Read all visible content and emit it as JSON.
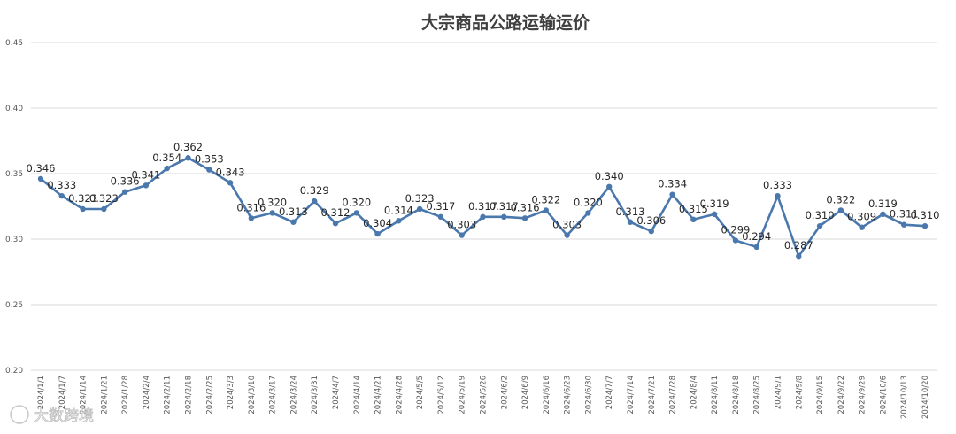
{
  "chart_data": {
    "type": "line",
    "title": "大宗商品公路运输运价",
    "xlabel": "",
    "ylabel": "",
    "ylim": [
      0.2,
      0.45
    ],
    "yticks": [
      "0.20",
      "0.25",
      "0.30",
      "0.35",
      "0.40",
      "0.45"
    ],
    "grid": true,
    "color": "#4a78ad",
    "categories": [
      "2024/1/1",
      "2024/1/7",
      "2024/1/14",
      "2024/1/21",
      "2024/1/28",
      "2024/2/4",
      "2024/2/11",
      "2024/2/18",
      "2024/2/25",
      "2024/3/3",
      "2024/3/10",
      "2024/3/17",
      "2024/3/24",
      "2024/3/31",
      "2024/4/7",
      "2024/4/14",
      "2024/4/21",
      "2024/4/28",
      "2024/5/5",
      "2024/5/12",
      "2024/5/19",
      "2024/5/26",
      "2024/6/2",
      "2024/6/9",
      "2024/6/16",
      "2024/6/23",
      "2024/6/30",
      "2024/7/7",
      "2024/7/14",
      "2024/7/21",
      "2024/7/28",
      "2024/8/4",
      "2024/8/11",
      "2024/8/18",
      "2024/8/25",
      "2024/9/1",
      "2024/9/8",
      "2024/9/15",
      "2024/9/22",
      "2024/9/29",
      "2024/10/6",
      "2024/10/13",
      "2024/10/20"
    ],
    "series": [
      {
        "values": [
          0.346,
          0.333,
          0.323,
          0.323,
          0.336,
          0.341,
          0.354,
          0.362,
          0.353,
          0.343,
          0.316,
          0.32,
          0.313,
          0.329,
          0.312,
          0.32,
          0.304,
          0.314,
          0.323,
          0.317,
          0.303,
          0.317,
          0.317,
          0.316,
          0.322,
          0.303,
          0.32,
          0.34,
          0.313,
          0.306,
          0.334,
          0.315,
          0.319,
          0.299,
          0.294,
          0.333,
          0.287,
          0.31,
          0.322,
          0.309,
          0.319,
          0.311,
          0.31
        ],
        "labels": [
          "0.346",
          "0.333",
          "0.323",
          "0.323",
          "0.336",
          "0.341",
          "0.354",
          "0.362",
          "0.353",
          "0.343",
          "0.316",
          "0.320",
          "0.313",
          "0.329",
          "0.312",
          "0.320",
          "0.304",
          "0.314",
          "0.323",
          "0.317",
          "0.303",
          "0.317",
          "0.317",
          "0.316",
          "0.322",
          "0.303",
          "0.320",
          "0.340",
          "0.313",
          "0.306",
          "0.334",
          "0.315",
          "0.319",
          "0.299",
          "0.294",
          "0.333",
          "0.287",
          "0.310",
          "0.322",
          "0.309",
          "0.319",
          "0.311",
          "0.310"
        ]
      }
    ]
  },
  "watermark": "大数跨境"
}
